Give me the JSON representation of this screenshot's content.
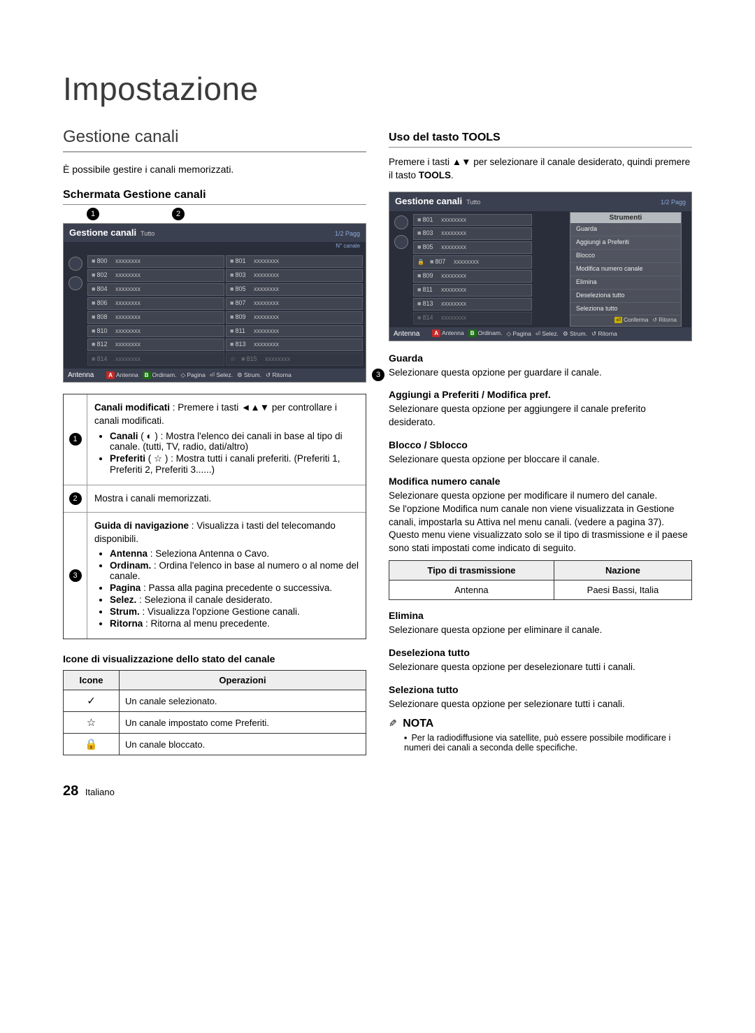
{
  "page": {
    "title": "Impostazione",
    "number": "28",
    "lang": "Italiano"
  },
  "left": {
    "h2": "Gestione canali",
    "lead": "È possibile gestire i canali memorizzati.",
    "sub1": "Schermata Gestione canali",
    "osd": {
      "title": "Gestione canali",
      "title_sub": "Tutto",
      "page": "1/2 Pagg",
      "subline": "N° canale",
      "tab": "Antenna",
      "nav": {
        "a_color": "#c62828",
        "a": "Antenna",
        "b_color": "#1a6d12",
        "b": "Ordinam.",
        "arrows": "Pagina",
        "enter": "Selez.",
        "tools": "Strum.",
        "return": "Ritorna"
      },
      "channels": [
        {
          "n": "800",
          "x": "xxxxxxxx"
        },
        {
          "n": "801",
          "x": "xxxxxxxx"
        },
        {
          "n": "802",
          "x": "xxxxxxxx"
        },
        {
          "n": "803",
          "x": "xxxxxxxx"
        },
        {
          "n": "804",
          "x": "xxxxxxxx"
        },
        {
          "n": "805",
          "x": "xxxxxxxx"
        },
        {
          "n": "806",
          "x": "xxxxxxxx"
        },
        {
          "n": "807",
          "x": "xxxxxxxx"
        },
        {
          "n": "808",
          "x": "xxxxxxxx"
        },
        {
          "n": "809",
          "x": "xxxxxxxx"
        },
        {
          "n": "810",
          "x": "xxxxxxxx"
        },
        {
          "n": "811",
          "x": "xxxxxxxx"
        },
        {
          "n": "812",
          "x": "xxxxxxxx"
        },
        {
          "n": "813",
          "x": "xxxxxxxx"
        },
        {
          "n": "814",
          "x": "xxxxxxxx",
          "dim": true
        },
        {
          "n": "815",
          "x": "xxxxxxxx",
          "dim": true,
          "star": true
        }
      ],
      "callouts": [
        "1",
        "2",
        "3"
      ]
    },
    "rows": [
      {
        "n": "1",
        "intro_bold": "Canali modificati",
        "intro_rest": " : Premere i tasti ◄▲▼ per controllare i canali modificati.",
        "bullets": [
          {
            "b": "Canali",
            "icon": "◐",
            "rest": " : Mostra l'elenco dei canali in base al tipo di canale. (tutti, TV, radio, dati/altro)"
          },
          {
            "b": "Preferiti",
            "icon": "☆",
            "rest": " : Mostra tutti i canali preferiti. (Preferiti 1, Preferiti 2, Preferiti 3......)"
          }
        ]
      },
      {
        "n": "2",
        "plain": "Mostra i canali memorizzati."
      },
      {
        "n": "3",
        "intro_bold": "Guida di navigazione",
        "intro_rest": " : Visualizza i tasti del telecomando disponibili.",
        "bullets": [
          {
            "b": "Antenna",
            "rest": " : Seleziona Antenna o Cavo."
          },
          {
            "b": "Ordinam.",
            "rest": " : Ordina l'elenco in base al numero o al nome del canale."
          },
          {
            "b": "Pagina",
            "rest": " : Passa alla pagina precedente o successiva."
          },
          {
            "b": "Selez.",
            "rest": " : Seleziona il canale desiderato."
          },
          {
            "b": "Strum.",
            "rest": " : Visualizza l'opzione Gestione canali."
          },
          {
            "b": "Ritorna",
            "rest": " : Ritorna al menu precedente."
          }
        ]
      }
    ],
    "iconsHeading": "Icone di visualizzazione dello stato del canale",
    "iconsTable": {
      "h1": "Icone",
      "h2": "Operazioni",
      "rows": [
        {
          "icon": "✓",
          "text": "Un canale selezionato."
        },
        {
          "icon": "☆",
          "text": "Un canale impostato come Preferiti."
        },
        {
          "icon": "🔒",
          "text": "Un canale bloccato."
        }
      ]
    }
  },
  "right": {
    "sub1": "Uso del tasto TOOLS",
    "lead_pre": "Premere i tasti ▲▼ per selezionare il canale desiderato, quindi premere il tasto ",
    "lead_bold": "TOOLS",
    "lead_post": ".",
    "osd": {
      "title": "Gestione canali",
      "title_sub": "Tutto",
      "page": "1/2 Pagg",
      "tab": "Antenna",
      "tools_hdr": "Strumenti",
      "tools": [
        "Guarda",
        "Aggiungi a Preferiti",
        "Blocco",
        "Modifica numero canale",
        "Elimina",
        "Deseleziona tutto",
        "Seleziona tutto"
      ],
      "tools_ft_confirm": "Conferma",
      "tools_ft_return": "Ritorna",
      "channels": [
        {
          "n": "801",
          "x": "xxxxxxxx"
        },
        {
          "n": "803",
          "x": "xxxxxxxx"
        },
        {
          "n": "805",
          "x": "xxxxxxxx"
        },
        {
          "n": "807",
          "x": "xxxxxxxx",
          "locked": true
        },
        {
          "n": "809",
          "x": "xxxxxxxx"
        },
        {
          "n": "811",
          "x": "xxxxxxxx"
        },
        {
          "n": "813",
          "x": "xxxxxxxx"
        },
        {
          "n": "814",
          "x": "xxxxxxxx",
          "dim": true
        }
      ],
      "nav": {
        "a_color": "#c62828",
        "a": "Antenna",
        "b_color": "#1a6d12",
        "b": "Ordinam.",
        "arrows": "Pagina",
        "enter": "Selez.",
        "tools": "Strum.",
        "return": "Ritorna"
      }
    },
    "sections": [
      {
        "h": "Guarda",
        "p": "Selezionare questa opzione per guardare il canale."
      },
      {
        "h": "Aggiungi a Preferiti / Modifica pref.",
        "p": "Selezionare questa opzione per aggiungere il canale preferito desiderato."
      },
      {
        "h": "Blocco / Sblocco",
        "p": "Selezionare questa opzione per bloccare il canale."
      },
      {
        "h": "Modifica numero canale",
        "p": "Selezionare questa opzione per modificare il numero del canale.",
        "p2": "Se l'opzione Modifica num canale non viene visualizzata in Gestione canali, impostarla su Attiva nel menu canali. (vedere a pagina 37).",
        "p3": "Questo menu viene visualizzato solo se il tipo di trasmissione e il paese sono stati impostati come indicato di seguito."
      }
    ],
    "table": {
      "h1": "Tipo di trasmissione",
      "h2": "Nazione",
      "r1c1": "Antenna",
      "r1c2": "Paesi Bassi, Italia"
    },
    "sections2": [
      {
        "h": "Elimina",
        "p": "Selezionare questa opzione per eliminare il canale."
      },
      {
        "h": "Deseleziona tutto",
        "p": "Selezionare questa opzione per deselezionare tutti i canali."
      },
      {
        "h": "Seleziona tutto",
        "p": "Selezionare questa opzione per selezionare tutti i canali."
      }
    ],
    "note_label": "NOTA",
    "note_item": "Per la radiodiffusione via satellite, può essere possibile modificare i numeri dei canali a seconda delle specifiche."
  }
}
